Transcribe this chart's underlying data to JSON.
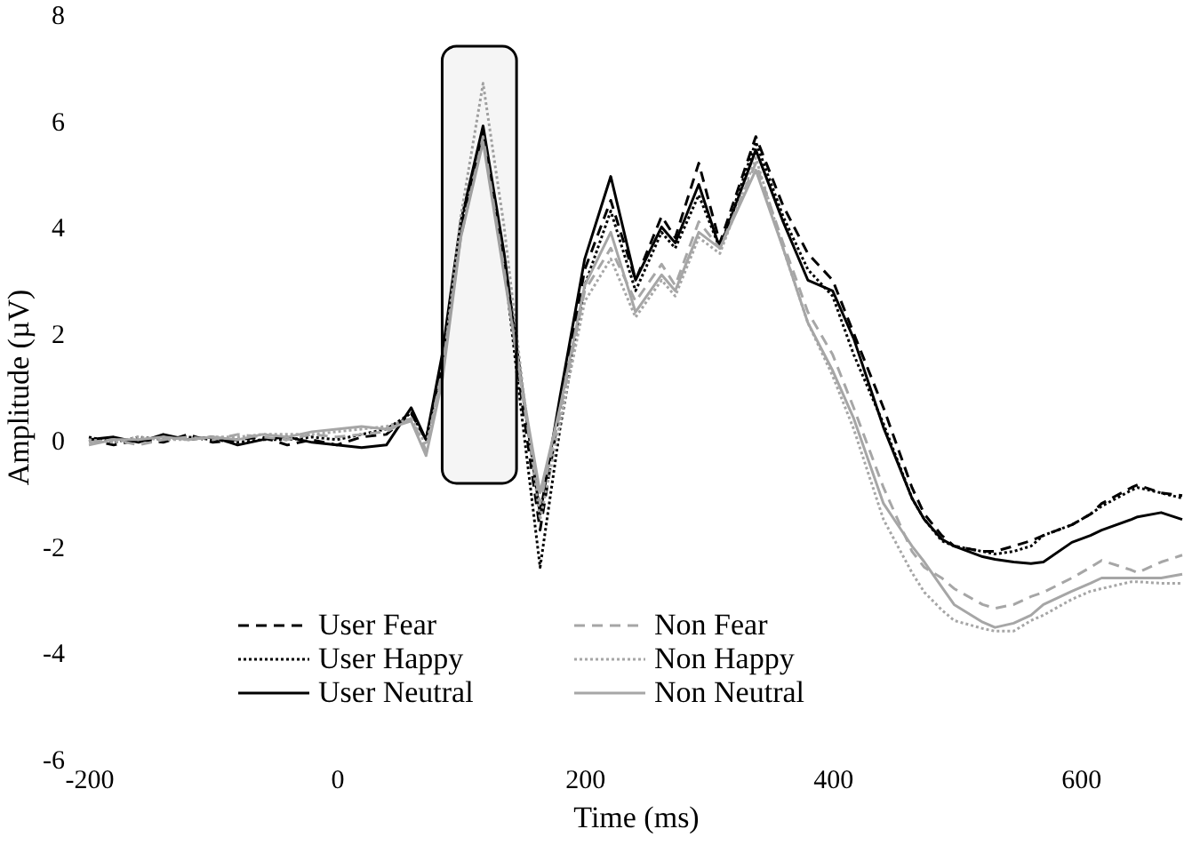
{
  "chart_data": {
    "type": "line",
    "xlabel": "Time (ms)",
    "ylabel": "Amplitude (µV)",
    "x": [
      -200,
      -180,
      -160,
      -140,
      -120,
      -100,
      -80,
      -60,
      -40,
      -20,
      0,
      20,
      40,
      60,
      72,
      85,
      100,
      118,
      135,
      150,
      164,
      180,
      200,
      221,
      241,
      262,
      273,
      292,
      309,
      338,
      360,
      380,
      400,
      417,
      441,
      464,
      474,
      488,
      498,
      521,
      531,
      546,
      560,
      570,
      593,
      608,
      617,
      641,
      646,
      665,
      682
    ],
    "series": [
      {
        "name": "User Fear",
        "color": "#000000",
        "line_style": "dashed",
        "values": [
          0.0,
          -0.1,
          0.0,
          -0.05,
          0.1,
          -0.05,
          0.0,
          0.05,
          -0.1,
          0.0,
          -0.1,
          0.05,
          0.1,
          0.5,
          0.0,
          1.4,
          4.0,
          5.8,
          3.4,
          0.6,
          -1.7,
          0.6,
          3.2,
          4.5,
          3.0,
          4.2,
          3.8,
          5.2,
          3.7,
          5.7,
          4.4,
          3.5,
          3.0,
          2.0,
          0.6,
          -0.9,
          -1.4,
          -1.8,
          -2.0,
          -2.1,
          -2.1,
          -2.0,
          -1.9,
          -1.8,
          -1.6,
          -1.4,
          -1.2,
          -0.9,
          -0.85,
          -1.0,
          -1.05
        ]
      },
      {
        "name": "User Happy",
        "color": "#000000",
        "line_style": "dotted",
        "values": [
          0.05,
          -0.05,
          0.05,
          0.0,
          0.05,
          0.0,
          -0.05,
          0.0,
          0.0,
          0.05,
          0.0,
          0.1,
          0.2,
          0.5,
          0.0,
          1.3,
          3.9,
          5.8,
          3.3,
          0.3,
          -2.4,
          0.2,
          2.9,
          4.3,
          2.8,
          3.9,
          3.6,
          4.6,
          3.6,
          5.6,
          4.2,
          3.2,
          2.7,
          1.6,
          0.3,
          -1.1,
          -1.5,
          -1.9,
          -2.0,
          -2.1,
          -2.15,
          -2.1,
          -2.0,
          -1.8,
          -1.6,
          -1.4,
          -1.25,
          -0.95,
          -0.9,
          -1.0,
          -1.1
        ]
      },
      {
        "name": "User Neutral",
        "color": "#000000",
        "line_style": "solid",
        "values": [
          0.0,
          0.05,
          -0.05,
          0.1,
          0.0,
          0.05,
          -0.1,
          0.0,
          0.05,
          -0.05,
          -0.1,
          -0.15,
          -0.1,
          0.6,
          0.0,
          1.6,
          4.1,
          5.9,
          3.5,
          0.9,
          -1.4,
          0.8,
          3.4,
          4.95,
          3.0,
          4.0,
          3.7,
          4.8,
          3.6,
          5.45,
          4.1,
          3.0,
          2.8,
          1.9,
          0.23,
          -1.1,
          -1.5,
          -1.87,
          -2.0,
          -2.2,
          -2.25,
          -2.3,
          -2.33,
          -2.3,
          -1.93,
          -1.8,
          -1.7,
          -1.5,
          -1.45,
          -1.37,
          -1.5
        ]
      },
      {
        "name": "Non Fear",
        "color": "#a6a6a6",
        "line_style": "dashed",
        "values": [
          -0.05,
          0.0,
          -0.1,
          0.0,
          0.05,
          0.0,
          0.1,
          0.05,
          0.0,
          0.1,
          0.05,
          0.1,
          0.15,
          0.4,
          -0.2,
          1.3,
          3.8,
          5.7,
          3.2,
          0.8,
          -1.2,
          0.5,
          2.8,
          3.6,
          2.6,
          3.3,
          2.9,
          4.1,
          3.6,
          5.2,
          3.7,
          2.4,
          1.6,
          0.6,
          -0.9,
          -2.1,
          -2.4,
          -2.6,
          -2.8,
          -3.1,
          -3.17,
          -3.1,
          -2.95,
          -2.87,
          -2.6,
          -2.4,
          -2.27,
          -2.45,
          -2.5,
          -2.3,
          -2.17
        ]
      },
      {
        "name": "Non Happy",
        "color": "#a6a6a6",
        "line_style": "dotted",
        "values": [
          0.0,
          -0.05,
          0.05,
          0.0,
          0.0,
          0.05,
          0.05,
          0.1,
          0.1,
          0.1,
          0.15,
          0.2,
          0.25,
          0.4,
          -0.1,
          1.2,
          4.2,
          6.7,
          4.0,
          1.0,
          -1.5,
          0.3,
          2.6,
          3.4,
          2.3,
          3.0,
          2.7,
          3.8,
          3.5,
          5.3,
          3.6,
          2.2,
          1.2,
          0.2,
          -1.5,
          -2.5,
          -2.87,
          -3.2,
          -3.4,
          -3.55,
          -3.6,
          -3.6,
          -3.4,
          -3.3,
          -3.0,
          -2.85,
          -2.8,
          -2.67,
          -2.67,
          -2.7,
          -2.7
        ]
      },
      {
        "name": "Non Neutral",
        "color": "#a6a6a6",
        "line_style": "solid",
        "values": [
          -0.1,
          0.0,
          0.0,
          0.05,
          0.0,
          0.05,
          0.0,
          0.1,
          0.05,
          0.15,
          0.2,
          0.25,
          0.2,
          0.35,
          -0.3,
          1.1,
          3.8,
          5.6,
          3.1,
          0.9,
          -1.0,
          0.6,
          2.9,
          3.9,
          2.4,
          3.1,
          2.8,
          3.9,
          3.6,
          5.07,
          3.6,
          2.2,
          1.3,
          0.4,
          -1.2,
          -2.0,
          -2.3,
          -2.77,
          -3.1,
          -3.43,
          -3.53,
          -3.45,
          -3.3,
          -3.1,
          -2.85,
          -2.7,
          -2.6,
          -2.6,
          -2.6,
          -2.6,
          -2.53
        ]
      }
    ],
    "xlim": [
      -200,
      682
    ],
    "xticks": [
      -200,
      0,
      200,
      400,
      600
    ],
    "ylim": [
      -6,
      8
    ],
    "yticks": [
      -6,
      -4,
      -2,
      0,
      2,
      4,
      6,
      8
    ],
    "bands": [
      {
        "axis": "x",
        "from": 85,
        "to": 145,
        "color": "#000000"
      }
    ],
    "grid": false,
    "legend": "bottom"
  }
}
